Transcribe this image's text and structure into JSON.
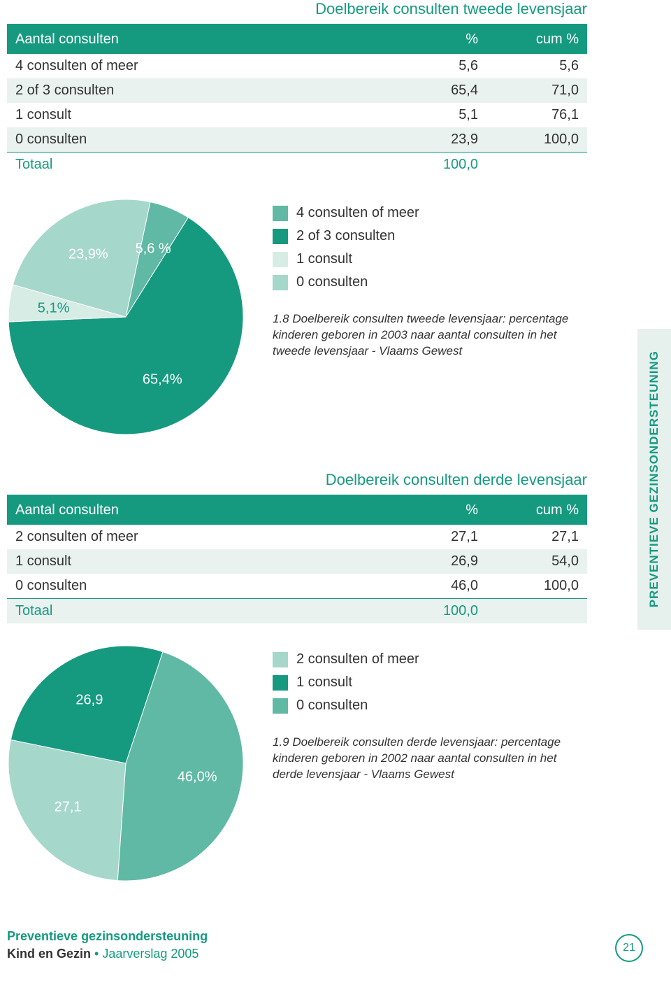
{
  "colors": {
    "teal_dark": "#159a80",
    "teal_mid": "#5fb9a5",
    "teal_light": "#a6d7cb",
    "teal_pale": "#d8ece6",
    "row_alt": "#e9f2ef",
    "rule": "#159a80",
    "title": "#159a80",
    "side_bg": "#e6f0ed",
    "side_text": "#159a80"
  },
  "section1": {
    "title": "Doelbereik consulten tweede levensjaar",
    "headers": [
      "Aantal consulten",
      "%",
      "cum %"
    ],
    "rows": [
      {
        "label": "4 consulten of meer",
        "pct": "5,6",
        "cum": "5,6"
      },
      {
        "label": "2 of 3 consulten",
        "pct": "65,4",
        "cum": "71,0"
      },
      {
        "label": "1 consult",
        "pct": "5,1",
        "cum": "76,1"
      },
      {
        "label": "0 consulten",
        "pct": "23,9",
        "cum": "100,0"
      }
    ],
    "total_label": "Totaal",
    "total_value": "100,0",
    "pie": {
      "type": "pie",
      "slices": [
        {
          "label": "4 consulten of meer",
          "value": 5.6,
          "color": "#5fb9a5",
          "text": "5,6 %"
        },
        {
          "label": "2 of 3 consulten",
          "value": 65.4,
          "color": "#159a80",
          "text": "65,4%"
        },
        {
          "label": "1 consult",
          "value": 5.1,
          "color": "#d8ece6",
          "text": "5,1%",
          "text_color": "#159a80"
        },
        {
          "label": "0 consulten",
          "value": 23.9,
          "color": "#a6d7cb",
          "text": "23,9%"
        }
      ],
      "start_angle_deg": -78
    },
    "legend": [
      {
        "color": "#5fb9a5",
        "label": "4 consulten of meer"
      },
      {
        "color": "#159a80",
        "label": "2 of 3 consulten"
      },
      {
        "color": "#d8ece6",
        "label": "1 consult"
      },
      {
        "color": "#a6d7cb",
        "label": "0 consulten"
      }
    ],
    "caption": "1.8 Doelbereik consulten tweede levensjaar: percentage kinderen geboren in 2003 naar aantal consulten in het tweede levensjaar - Vlaams Gewest"
  },
  "section2": {
    "title": "Doelbereik consulten derde levensjaar",
    "headers": [
      "Aantal consulten",
      "%",
      "cum %"
    ],
    "rows": [
      {
        "label": "2 consulten of meer",
        "pct": "27,1",
        "cum": "27,1"
      },
      {
        "label": "1 consult",
        "pct": "26,9",
        "cum": "54,0"
      },
      {
        "label": "0 consulten",
        "pct": "46,0",
        "cum": "100,0"
      }
    ],
    "total_label": "Totaal",
    "total_value": "100,0",
    "pie": {
      "type": "pie",
      "slices": [
        {
          "label": "2 consulten of meer",
          "value": 27.1,
          "color": "#a6d7cb",
          "text": "27,1"
        },
        {
          "label": "1 consult",
          "value": 26.9,
          "color": "#159a80",
          "text": "26,9"
        },
        {
          "label": "0 consulten",
          "value": 46.0,
          "color": "#5fb9a5",
          "text": "46,0%"
        }
      ],
      "start_angle_deg": 94
    },
    "legend": [
      {
        "color": "#a6d7cb",
        "label": "2 consulten of meer"
      },
      {
        "color": "#159a80",
        "label": "1 consult"
      },
      {
        "color": "#5fb9a5",
        "label": "0 consulten"
      }
    ],
    "caption": "1.9 Doelbereik consulten derde levensjaar: percentage kinderen geboren in 2002 naar aantal consulten in het derde levensjaar - Vlaams Gewest"
  },
  "side_tab": "PREVENTIEVE GEZINSONDERSTEUNING",
  "footer": {
    "line1": "Preventieve gezinsondersteuning",
    "line2a": "Kind en Gezin",
    "line2b": "Jaarverslag 2005",
    "page": "21"
  }
}
